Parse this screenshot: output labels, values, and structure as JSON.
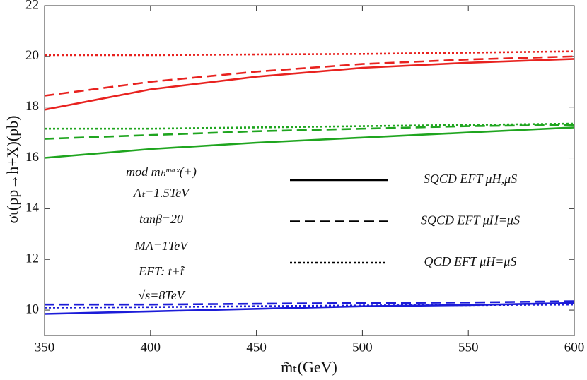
{
  "chart_data": {
    "type": "line",
    "x_label": "m̃ₜ(GeV)",
    "y_label": "σₜ(pp→h+X)(pb)",
    "x": [
      350,
      400,
      450,
      500,
      550,
      600
    ],
    "xlim": [
      350,
      600
    ],
    "xticks": [
      350,
      400,
      450,
      500,
      550,
      600
    ],
    "ylim": [
      9,
      22
    ],
    "yticks": [
      10,
      12,
      14,
      16,
      18,
      20,
      22
    ],
    "series": [
      {
        "color": "#e8221f",
        "dash": "solid",
        "values": [
          17.9,
          18.7,
          19.2,
          19.55,
          19.75,
          19.9
        ]
      },
      {
        "color": "#e8221f",
        "dash": "dashed",
        "values": [
          18.45,
          19.0,
          19.4,
          19.7,
          19.88,
          20.0
        ]
      },
      {
        "color": "#e8221f",
        "dash": "dotted",
        "values": [
          20.05,
          20.05,
          20.08,
          20.1,
          20.15,
          20.2
        ]
      },
      {
        "color": "#1fa51f",
        "dash": "solid",
        "values": [
          16.0,
          16.35,
          16.6,
          16.8,
          17.0,
          17.2
        ]
      },
      {
        "color": "#1fa51f",
        "dash": "dashed",
        "values": [
          16.75,
          16.9,
          17.05,
          17.15,
          17.25,
          17.3
        ]
      },
      {
        "color": "#1fa51f",
        "dash": "dotted",
        "values": [
          17.15,
          17.15,
          17.2,
          17.25,
          17.3,
          17.35
        ]
      },
      {
        "color": "#1c1cd8",
        "dash": "solid",
        "values": [
          9.85,
          9.95,
          10.05,
          10.15,
          10.2,
          10.28
        ]
      },
      {
        "color": "#1c1cd8",
        "dash": "dashed",
        "values": [
          10.22,
          10.22,
          10.25,
          10.28,
          10.3,
          10.35
        ]
      },
      {
        "color": "#1c1cd8",
        "dash": "dotted",
        "values": [
          10.1,
          10.12,
          10.15,
          10.18,
          10.2,
          10.22
        ]
      }
    ],
    "legend": [
      {
        "name": "SQCD EFT μH,μS",
        "dash": "solid"
      },
      {
        "name": "SQCD EFT μH=μS",
        "dash": "dashed"
      },
      {
        "name": "QCD EFT μH=μS",
        "dash": "dotted"
      }
    ],
    "annotations": [
      "mod mₕᵐᵃˣ(+)",
      "Aₜ=1.5TeV",
      "tanβ=20",
      "MA=1TeV",
      "EFT: t+t̃",
      "√s=8TeV"
    ]
  }
}
